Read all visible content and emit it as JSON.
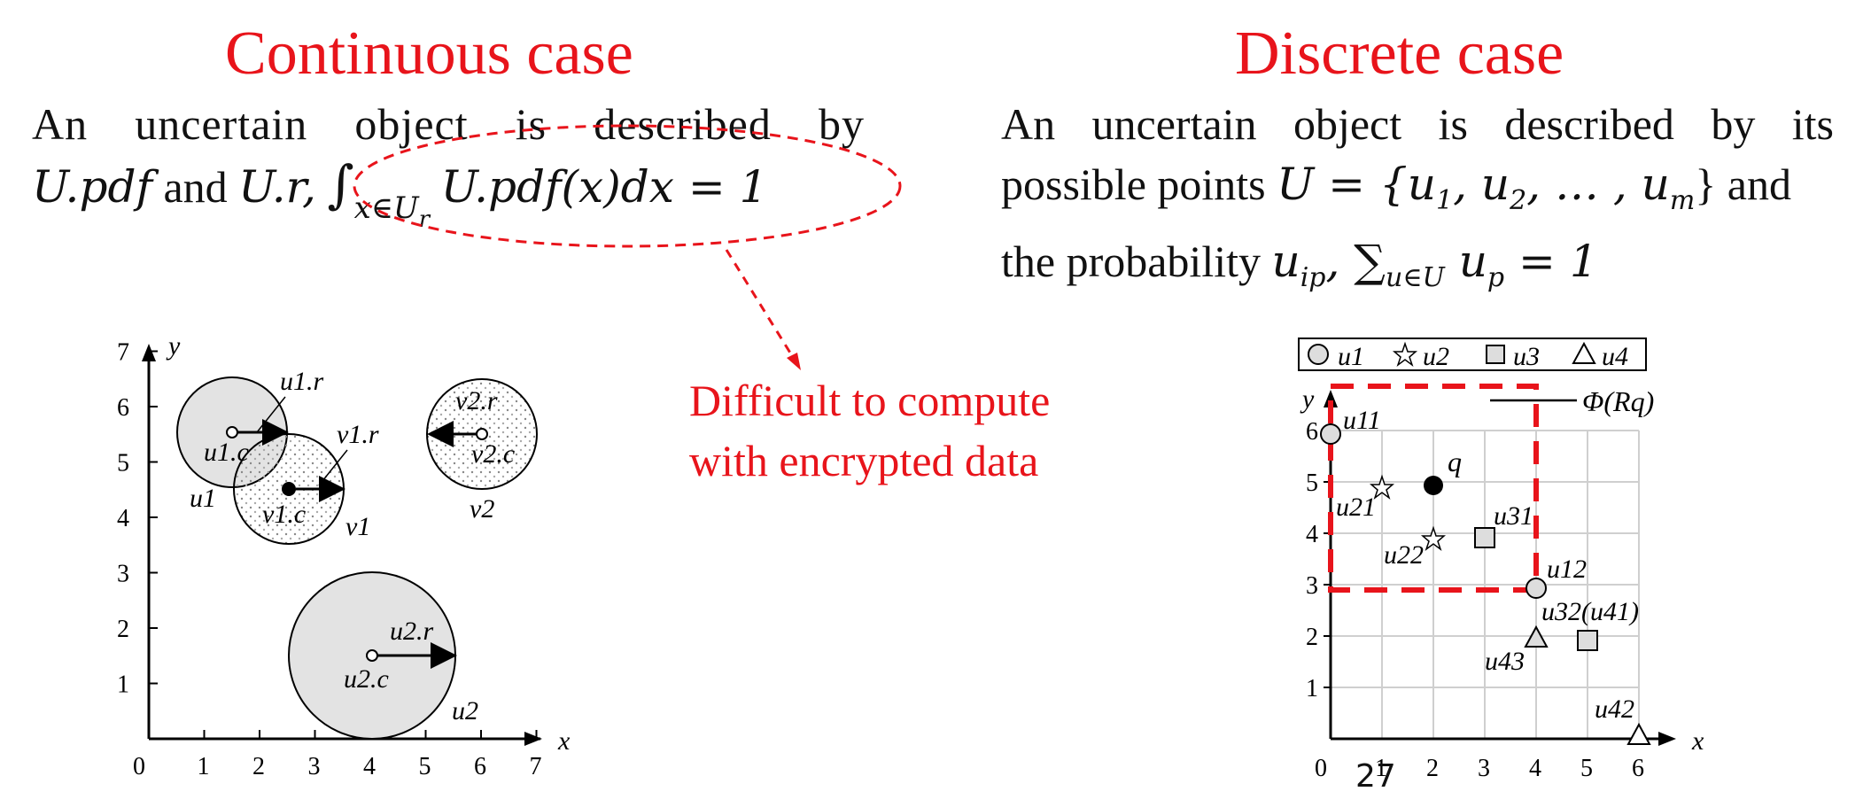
{
  "continuous": {
    "title": "Continuous case",
    "line1": "An uncertain object is described by",
    "line2_a": "U.pdf",
    "line2_and": " and ",
    "line2_b": "U.r,",
    "integral_text": "U.pdf(x)dx = 1",
    "integral_sub": "x∈U",
    "integral_subsub": "r",
    "note_line1": "Difficult to compute",
    "note_line2": "with encrypted data"
  },
  "discrete": {
    "title": "Discrete case",
    "line1": "An uncertain object is described by its",
    "line2_a": "possible points",
    "line2_set": "U = {u",
    "line2_rest": "} and",
    "line3_a": "the probability",
    "line3_b": "u",
    "line3_sub": "ip",
    "line3_c": ", ∑",
    "line3_sub2": "u∈U",
    "line3_d": " u",
    "line3_sub3": "p",
    "line3_e": " = 1"
  },
  "left_plot": {
    "x_label": "x",
    "y_label": "y",
    "x_ticks": [
      "0",
      "1",
      "2",
      "3",
      "4",
      "5",
      "6",
      "7"
    ],
    "y_ticks": [
      "1",
      "2",
      "3",
      "4",
      "5",
      "6",
      "7"
    ],
    "labels": {
      "u1r": "u1.r",
      "u1c": "u1.c",
      "u1": "u1",
      "v1r": "v1.r",
      "v1c": "v1.c",
      "v1": "v1",
      "v2r": "v2.r",
      "v2c": "v2.c",
      "v2": "v2",
      "u2r": "u2.r",
      "u2c": "u2.c",
      "u2": "u2"
    }
  },
  "right_plot": {
    "legend": [
      "u1",
      "u2",
      "u3",
      "u4"
    ],
    "x_label": "x",
    "y_label": "y",
    "x_ticks": [
      "0",
      "1",
      "2",
      "3",
      "4",
      "5",
      "6"
    ],
    "y_ticks": [
      "1",
      "2",
      "3",
      "4",
      "5",
      "6"
    ],
    "phi_label": "Φ(Rq)",
    "q_label": "q",
    "point_labels": {
      "u11": "u11",
      "u21": "u21",
      "u22": "u22",
      "u31": "u31",
      "u12": "u12",
      "u32u41": "u32(u41)",
      "u43": "u43",
      "u42": "u42"
    }
  },
  "page_number": "27"
}
